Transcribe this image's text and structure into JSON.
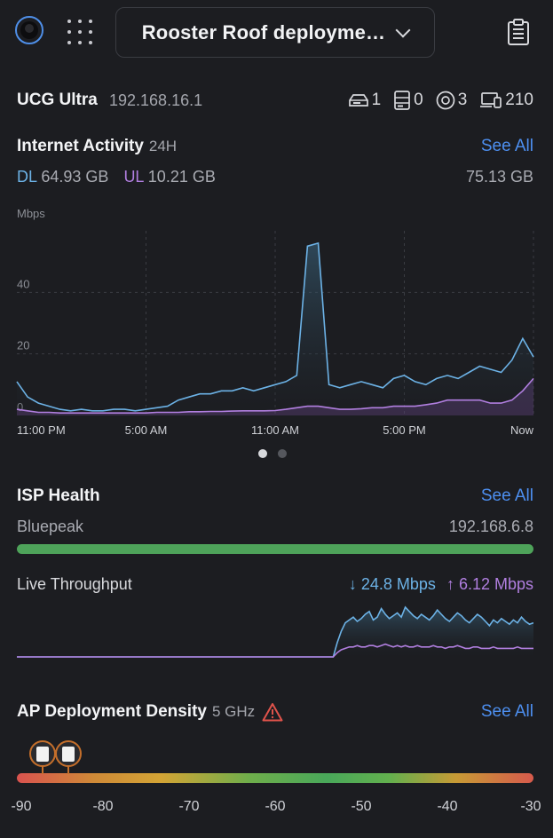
{
  "header": {
    "site_name": "Rooster Roof deployme…",
    "icons": [
      "avatar",
      "apps-grid-icon",
      "chevron-down-icon",
      "clipboard-icon"
    ]
  },
  "device": {
    "name": "UCG Ultra",
    "ip": "192.168.16.1",
    "stats": [
      {
        "icon": "switch-icon",
        "value": "1"
      },
      {
        "icon": "server-icon",
        "value": "0"
      },
      {
        "icon": "access-point-icon",
        "value": "3"
      },
      {
        "icon": "clients-icon",
        "value": "210"
      }
    ]
  },
  "internet_activity": {
    "title": "Internet Activity",
    "range": "24H",
    "see_all": "See All",
    "dl_key": "DL",
    "dl_value": "64.93 GB",
    "ul_key": "UL",
    "ul_value": "10.21 GB",
    "total": "75.13 GB",
    "colors": {
      "download": "#6cb2e6",
      "upload": "#b17fe0"
    }
  },
  "chart_data": {
    "type": "area",
    "ylabel": "Mbps",
    "ylim": [
      0,
      60
    ],
    "yticks": [
      "0",
      "20",
      "40"
    ],
    "xticks": [
      "11:00 PM",
      "5:00 AM",
      "11:00 AM",
      "5:00 PM",
      "Now"
    ],
    "x_hours": [
      0,
      0.5,
      1,
      1.5,
      2,
      2.5,
      3,
      3.5,
      4,
      4.5,
      5,
      5.5,
      6,
      6.5,
      7,
      7.5,
      8,
      8.5,
      9,
      9.5,
      10,
      10.5,
      11,
      11.5,
      12,
      12.5,
      13,
      13.5,
      14,
      14.5,
      15,
      15.5,
      16,
      16.5,
      17,
      17.5,
      18,
      18.5,
      19,
      19.5,
      20,
      20.5,
      21,
      21.5,
      22,
      22.5,
      23,
      23.5,
      24
    ],
    "series": [
      {
        "name": "DL",
        "values": [
          11,
          6,
          4,
          3,
          2,
          1.5,
          2,
          1.5,
          1.5,
          2,
          2,
          1.5,
          2,
          2.5,
          3,
          5,
          6,
          7,
          7,
          8,
          8,
          9,
          8,
          9,
          10,
          11,
          13,
          55,
          56,
          10,
          9,
          10,
          11,
          10,
          9,
          12,
          13,
          11,
          10,
          12,
          13,
          12,
          14,
          16,
          15,
          14,
          18,
          25,
          19
        ]
      },
      {
        "name": "UL",
        "values": [
          2,
          1.5,
          1,
          1,
          0.8,
          0.8,
          0.8,
          0.8,
          0.8,
          0.8,
          0.8,
          0.8,
          0.8,
          1,
          1,
          1,
          1.2,
          1.2,
          1.3,
          1.3,
          1.4,
          1.5,
          1.5,
          1.5,
          1.6,
          2,
          2.5,
          3,
          3,
          2.5,
          2,
          2,
          2.2,
          2.5,
          2.5,
          3,
          3,
          3,
          3.5,
          4,
          5,
          5,
          5,
          5,
          4,
          4,
          5,
          8,
          12
        ]
      }
    ],
    "page_indicator": {
      "pages": 2,
      "active": 0
    }
  },
  "isp_health": {
    "title": "ISP Health",
    "see_all": "See All",
    "isp_name": "Bluepeak",
    "ip": "192.168.6.8",
    "health_color": "#4ea35a"
  },
  "live_throughput": {
    "label": "Live Throughput",
    "down": "↓ 24.8 Mbps",
    "up": "↑ 6.12 Mbps",
    "down_series": [
      0,
      0,
      0,
      0,
      0,
      0,
      0,
      0,
      0,
      0,
      0,
      0,
      0,
      0,
      0,
      0,
      0,
      0,
      0,
      0,
      0,
      0,
      0,
      0,
      0,
      0,
      0,
      0,
      0,
      0,
      0,
      0,
      0,
      0,
      0,
      0,
      0,
      0,
      0,
      0,
      0,
      0,
      0,
      0,
      0,
      0,
      0,
      0,
      0,
      0,
      0,
      0,
      0,
      0,
      0,
      0,
      0,
      0,
      0,
      0,
      0,
      0,
      0,
      0,
      0,
      0,
      0,
      0,
      0,
      0,
      0,
      0,
      0,
      0,
      0,
      0,
      0,
      0,
      0,
      0,
      10,
      18,
      24,
      26,
      28,
      25,
      27,
      30,
      32,
      26,
      28,
      34,
      30,
      27,
      29,
      31,
      28,
      35,
      32,
      29,
      27,
      30,
      28,
      26,
      29,
      33,
      30,
      27,
      25,
      28,
      31,
      29,
      26,
      24,
      27,
      30,
      28,
      25,
      22,
      26,
      24,
      27,
      25,
      23,
      26,
      24,
      28,
      25,
      23,
      24
    ],
    "up_series": [
      0,
      0,
      0,
      0,
      0,
      0,
      0,
      0,
      0,
      0,
      0,
      0,
      0,
      0,
      0,
      0,
      0,
      0,
      0,
      0,
      0,
      0,
      0,
      0,
      0,
      0,
      0,
      0,
      0,
      0,
      0,
      0,
      0,
      0,
      0,
      0,
      0,
      0,
      0,
      0,
      0,
      0,
      0,
      0,
      0,
      0,
      0,
      0,
      0,
      0,
      0,
      0,
      0,
      0,
      0,
      0,
      0,
      0,
      0,
      0,
      0,
      0,
      0,
      0,
      0,
      0,
      0,
      0,
      0,
      0,
      0,
      0,
      0,
      0,
      0,
      0,
      0,
      0,
      0,
      0,
      3,
      5,
      6,
      7,
      7,
      8,
      7,
      7,
      8,
      8,
      7,
      8,
      9,
      8,
      7,
      8,
      7,
      8,
      7,
      7,
      8,
      7,
      7,
      7,
      8,
      7,
      7,
      6,
      7,
      7,
      8,
      7,
      6,
      6,
      7,
      7,
      6,
      6,
      6,
      7,
      6,
      6,
      6,
      6,
      6,
      7,
      6,
      6,
      6,
      6
    ]
  },
  "ap_density": {
    "title": "AP Deployment Density",
    "band": "5 GHz",
    "warning_icon": "warning-icon",
    "see_all": "See All",
    "scale_labels": [
      "-90",
      "-80",
      "-70",
      "-60",
      "-50",
      "-40",
      "-30"
    ],
    "scale_min": -90,
    "scale_max": -30,
    "ap_signals": [
      -87,
      -84
    ]
  }
}
